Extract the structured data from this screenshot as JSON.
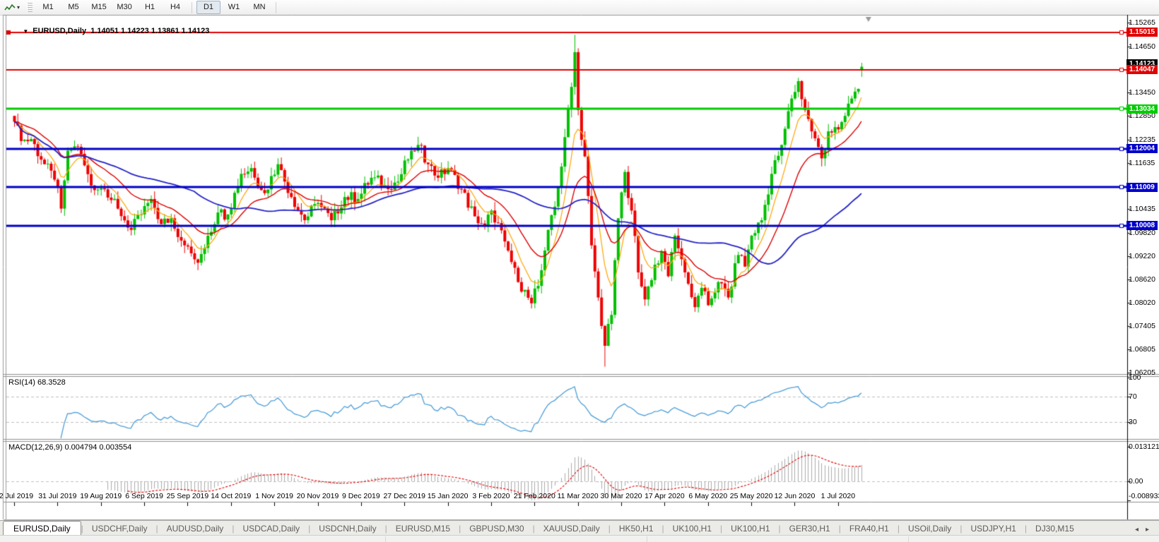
{
  "toolbar": {
    "timeframes": [
      {
        "label": "M1",
        "active": false
      },
      {
        "label": "M5",
        "active": false
      },
      {
        "label": "M15",
        "active": false
      },
      {
        "label": "M30",
        "active": false
      },
      {
        "label": "H1",
        "active": false
      },
      {
        "label": "H4",
        "active": false
      },
      {
        "label": "D1",
        "active": true
      },
      {
        "label": "W1",
        "active": false
      },
      {
        "label": "MN",
        "active": false
      }
    ]
  },
  "chart": {
    "collapse_glyph": "▼",
    "title_symbol": "EURUSD,Daily",
    "title_ohlc": "1.14051 1.14223 1.13861 1.14123",
    "price_ticks": [
      {
        "label": "1.15265",
        "value": 1.15265
      },
      {
        "label": "1.14650",
        "value": 1.1465
      },
      {
        "label": "1.13450",
        "value": 1.1345
      },
      {
        "label": "1.12850",
        "value": 1.1285
      },
      {
        "label": "1.12235",
        "value": 1.12235
      },
      {
        "label": "1.11635",
        "value": 1.11635
      },
      {
        "label": "1.10435",
        "value": 1.10435
      },
      {
        "label": "1.09820",
        "value": 1.0982
      },
      {
        "label": "1.09220",
        "value": 1.0922
      },
      {
        "label": "1.08620",
        "value": 1.0862
      },
      {
        "label": "1.08020",
        "value": 1.0802
      },
      {
        "label": "1.07405",
        "value": 1.07405
      },
      {
        "label": "1.06805",
        "value": 1.06805
      },
      {
        "label": "1.06205",
        "value": 1.06205
      }
    ],
    "levels": [
      {
        "label": "1.15015",
        "value": 1.15015,
        "color": "#e00000",
        "width": 2,
        "left_anchor": true
      },
      {
        "label": "1.14047",
        "value": 1.14047,
        "color": "#e00000",
        "width": 2,
        "left_anchor": false
      },
      {
        "label": "1.13034",
        "value": 1.13034,
        "color": "#00cc00",
        "width": 3,
        "left_anchor": false
      },
      {
        "label": "1.12004",
        "value": 1.12004,
        "color": "#0000c8",
        "width": 3,
        "left_anchor": false
      },
      {
        "label": "1.11009",
        "value": 1.11009,
        "color": "#0000c8",
        "width": 3,
        "left_anchor": false
      },
      {
        "label": "1.10008",
        "value": 1.10008,
        "color": "#0000c8",
        "width": 3,
        "left_anchor": false
      }
    ],
    "current_price": {
      "label": "1.14123",
      "value": 1.14123,
      "bg": "#000000"
    }
  },
  "rsi": {
    "label": "RSI(14) 68.3528",
    "scale": [
      {
        "label": "100",
        "value": 100
      },
      {
        "label": "70",
        "value": 70
      },
      {
        "label": "30",
        "value": 30
      }
    ],
    "line_color": "#4c9ed9",
    "level_lines": [
      70,
      30
    ]
  },
  "macd": {
    "label": "MACD(12,26,9) 0.004794 0.003554",
    "scale": [
      {
        "label": "0.013121",
        "value": 0.013121
      },
      {
        "label": "0.00",
        "value": 0
      },
      {
        "label": "-0.008933",
        "value": -0.008933
      }
    ],
    "hist_color": "#ababab",
    "signal_color": "#e00000"
  },
  "dates": [
    {
      "label": "12 Jul 2019",
      "index": 0
    },
    {
      "label": "31 Jul 2019",
      "index": 13
    },
    {
      "label": "19 Aug 2019",
      "index": 26
    },
    {
      "label": "6 Sep 2019",
      "index": 39
    },
    {
      "label": "25 Sep 2019",
      "index": 52
    },
    {
      "label": "14 Oct 2019",
      "index": 65
    },
    {
      "label": "1 Nov 2019",
      "index": 78
    },
    {
      "label": "20 Nov 2019",
      "index": 91
    },
    {
      "label": "9 Dec 2019",
      "index": 104
    },
    {
      "label": "27 Dec 2019",
      "index": 117
    },
    {
      "label": "15 Jan 2020",
      "index": 130
    },
    {
      "label": "3 Feb 2020",
      "index": 143
    },
    {
      "label": "21 Feb 2020",
      "index": 156
    },
    {
      "label": "11 Mar 2020",
      "index": 169
    },
    {
      "label": "30 Mar 2020",
      "index": 182
    },
    {
      "label": "17 Apr 2020",
      "index": 195
    },
    {
      "label": "6 May 2020",
      "index": 208
    },
    {
      "label": "25 May 2020",
      "index": 221
    },
    {
      "label": "12 Jun 2020",
      "index": 234
    },
    {
      "label": "1 Jul 2020",
      "index": 247
    }
  ],
  "tabs": {
    "items": [
      {
        "label": "EURUSD,Daily",
        "active": true
      },
      {
        "label": "USDCHF,Daily",
        "active": false
      },
      {
        "label": "AUDUSD,Daily",
        "active": false
      },
      {
        "label": "USDCAD,Daily",
        "active": false
      },
      {
        "label": "USDCNH,Daily",
        "active": false
      },
      {
        "label": "EURUSD,M15",
        "active": false
      },
      {
        "label": "GBPUSD,M30",
        "active": false
      },
      {
        "label": "XAUUSD,Daily",
        "active": false
      },
      {
        "label": "HK50,H1",
        "active": false
      },
      {
        "label": "UK100,H1",
        "active": false
      },
      {
        "label": "UK100,H1",
        "active": false
      },
      {
        "label": "GER30,H1",
        "active": false
      },
      {
        "label": "FRA40,H1",
        "active": false
      },
      {
        "label": "USOil,Daily",
        "active": false
      },
      {
        "label": "USDJPY,H1",
        "active": false
      },
      {
        "label": "DJ30,M15",
        "active": false
      }
    ],
    "nav_left": "◂",
    "nav_right": "▸"
  },
  "chart_data": {
    "type": "candlestick",
    "symbol": "EURUSD",
    "timeframe": "Daily",
    "bar_count": 255,
    "last_ohlc": {
      "open": 1.14051,
      "high": 1.14223,
      "low": 1.13861,
      "close": 1.14123
    },
    "up_color": "#00c000",
    "down_color": "#ee0000",
    "close_anchors": [
      [
        0,
        1.127
      ],
      [
        2,
        1.122
      ],
      [
        5,
        1.1225
      ],
      [
        9,
        1.116
      ],
      [
        12,
        1.112
      ],
      [
        14,
        1.1045
      ],
      [
        16,
        1.1195
      ],
      [
        19,
        1.1205
      ],
      [
        23,
        1.1105
      ],
      [
        27,
        1.1095
      ],
      [
        31,
        1.1045
      ],
      [
        35,
        1.099
      ],
      [
        38,
        1.103
      ],
      [
        41,
        1.107
      ],
      [
        44,
        1.1005
      ],
      [
        47,
        1.102
      ],
      [
        51,
        1.095
      ],
      [
        55,
        1.0905
      ],
      [
        58,
        1.0975
      ],
      [
        61,
        1.1035
      ],
      [
        64,
        1.103
      ],
      [
        68,
        1.1135
      ],
      [
        71,
        1.115
      ],
      [
        75,
        1.1085
      ],
      [
        79,
        1.116
      ],
      [
        83,
        1.1075
      ],
      [
        87,
        1.1015
      ],
      [
        91,
        1.106
      ],
      [
        95,
        1.1015
      ],
      [
        99,
        1.1075
      ],
      [
        103,
        1.107
      ],
      [
        107,
        1.1125
      ],
      [
        111,
        1.1105
      ],
      [
        115,
        1.1115
      ],
      [
        119,
        1.1195
      ],
      [
        121,
        1.121
      ],
      [
        124,
        1.116
      ],
      [
        127,
        1.1125
      ],
      [
        130,
        1.115
      ],
      [
        134,
        1.1095
      ],
      [
        138,
        1.1025
      ],
      [
        141,
        1.1
      ],
      [
        143,
        1.104
      ],
      [
        147,
        1.096
      ],
      [
        151,
        1.0855
      ],
      [
        155,
        1.08
      ],
      [
        157,
        1.0845
      ],
      [
        160,
        1.099
      ],
      [
        163,
        1.11
      ],
      [
        165,
        1.123
      ],
      [
        167,
        1.136
      ],
      [
        168,
        1.145
      ],
      [
        169,
        1.13
      ],
      [
        171,
        1.118
      ],
      [
        173,
        1.095
      ],
      [
        175,
        1.0815
      ],
      [
        177,
        1.069
      ],
      [
        179,
        1.077
      ],
      [
        181,
        1.102
      ],
      [
        183,
        1.114
      ],
      [
        185,
        1.104
      ],
      [
        187,
        1.088
      ],
      [
        189,
        1.081
      ],
      [
        192,
        1.09
      ],
      [
        194,
        1.0935
      ],
      [
        196,
        1.087
      ],
      [
        198,
        1.0975
      ],
      [
        201,
        1.088
      ],
      [
        204,
        1.079
      ],
      [
        206,
        1.084
      ],
      [
        208,
        1.0795
      ],
      [
        211,
        1.0855
      ],
      [
        214,
        1.0815
      ],
      [
        217,
        1.0925
      ],
      [
        219,
        1.0895
      ],
      [
        221,
        1.0975
      ],
      [
        224,
        1.1015
      ],
      [
        227,
        1.1135
      ],
      [
        230,
        1.121
      ],
      [
        233,
        1.133
      ],
      [
        235,
        1.1375
      ],
      [
        237,
        1.13
      ],
      [
        239,
        1.1245
      ],
      [
        242,
        1.1175
      ],
      [
        244,
        1.1245
      ],
      [
        247,
        1.125
      ],
      [
        249,
        1.1285
      ],
      [
        251,
        1.133
      ],
      [
        253,
        1.1355
      ],
      [
        254,
        1.14123
      ]
    ],
    "wick_overrides": [
      {
        "index": 168,
        "high": 1.1495
      },
      {
        "index": 177,
        "low": 1.0636
      }
    ],
    "horizontal_levels": [
      1.15015,
      1.14047,
      1.13034,
      1.12004,
      1.11009,
      1.10008
    ],
    "moving_averages": [
      {
        "type": "ema",
        "period": 8,
        "color": "#ffa500",
        "width": 1.2
      },
      {
        "type": "ema",
        "period": 21,
        "color": "#e00000",
        "width": 1.4
      },
      {
        "type": "sma",
        "period": 55,
        "color": "#2323c8",
        "width": 1.8
      }
    ],
    "y_axis": {
      "visible_range": [
        1.0585,
        1.1545
      ]
    },
    "indicators": {
      "rsi": {
        "period": 14,
        "current": 68.3528,
        "scale": [
          100,
          70,
          30
        ]
      },
      "macd": {
        "fast": 12,
        "slow": 26,
        "signal": 9,
        "current_macd": 0.004794,
        "current_signal": 0.003554,
        "scale_max": 0.013121,
        "scale_min": -0.008933
      }
    }
  }
}
